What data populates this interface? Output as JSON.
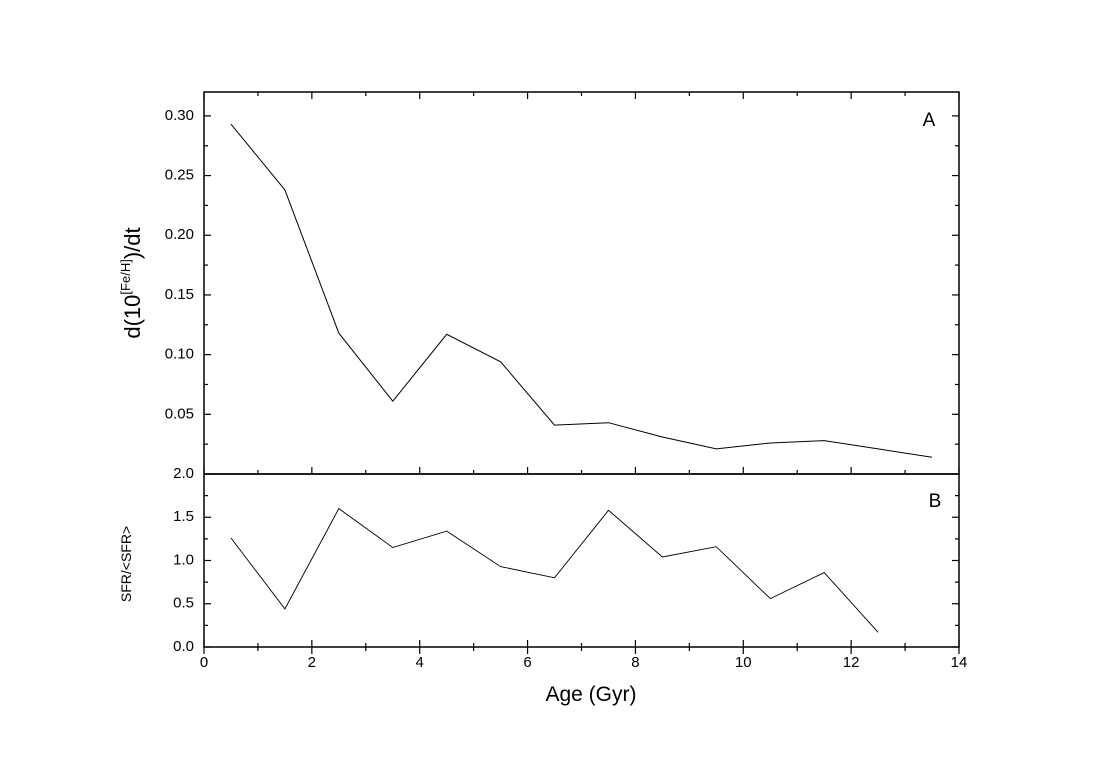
{
  "chart_data": [
    {
      "id": "panel-a",
      "type": "line",
      "panel_label": "A",
      "ylabel_base": "d(10",
      "ylabel_sup": "[Fe/H]",
      "ylabel_tail": ")/dt",
      "xlim": [
        0,
        14
      ],
      "ylim": [
        0.0,
        0.32
      ],
      "yticks": [
        0.05,
        0.1,
        0.15,
        0.2,
        0.25,
        0.3
      ],
      "ytick_labels": [
        "0.05",
        "0.10",
        "0.15",
        "0.20",
        "0.25",
        "0.30"
      ],
      "x": [
        0.5,
        1.5,
        2.5,
        3.5,
        4.5,
        5.5,
        6.5,
        7.5,
        8.5,
        9.5,
        10.5,
        11.5,
        12.5,
        13.5
      ],
      "series": [
        {
          "values": [
            0.293,
            0.238,
            0.118,
            0.061,
            0.117,
            0.094,
            0.041,
            0.043,
            0.031,
            0.021,
            0.026,
            0.028,
            0.021,
            0.014
          ]
        }
      ]
    },
    {
      "id": "panel-b",
      "type": "line",
      "panel_label": "B",
      "ylabel": "SFR/<SFR>",
      "xlabel": "Age (Gyr)",
      "xlim": [
        0,
        14
      ],
      "ylim": [
        0.0,
        2.0
      ],
      "xticks": [
        0,
        2,
        4,
        6,
        8,
        10,
        12,
        14
      ],
      "xtick_labels": [
        "0",
        "2",
        "4",
        "6",
        "8",
        "10",
        "12",
        "14"
      ],
      "yticks": [
        0.0,
        0.5,
        1.0,
        1.5,
        2.0
      ],
      "ytick_labels": [
        "0.0",
        "0.5",
        "1.0",
        "1.5",
        "2.0"
      ],
      "x": [
        0.5,
        1.5,
        2.5,
        3.5,
        4.5,
        5.5,
        6.5,
        7.5,
        8.5,
        9.5,
        10.5,
        11.5,
        12.5
      ],
      "series": [
        {
          "values": [
            1.26,
            0.44,
            1.6,
            1.15,
            1.34,
            0.93,
            0.8,
            1.58,
            1.04,
            1.16,
            0.56,
            0.86,
            0.17
          ]
        }
      ]
    }
  ]
}
